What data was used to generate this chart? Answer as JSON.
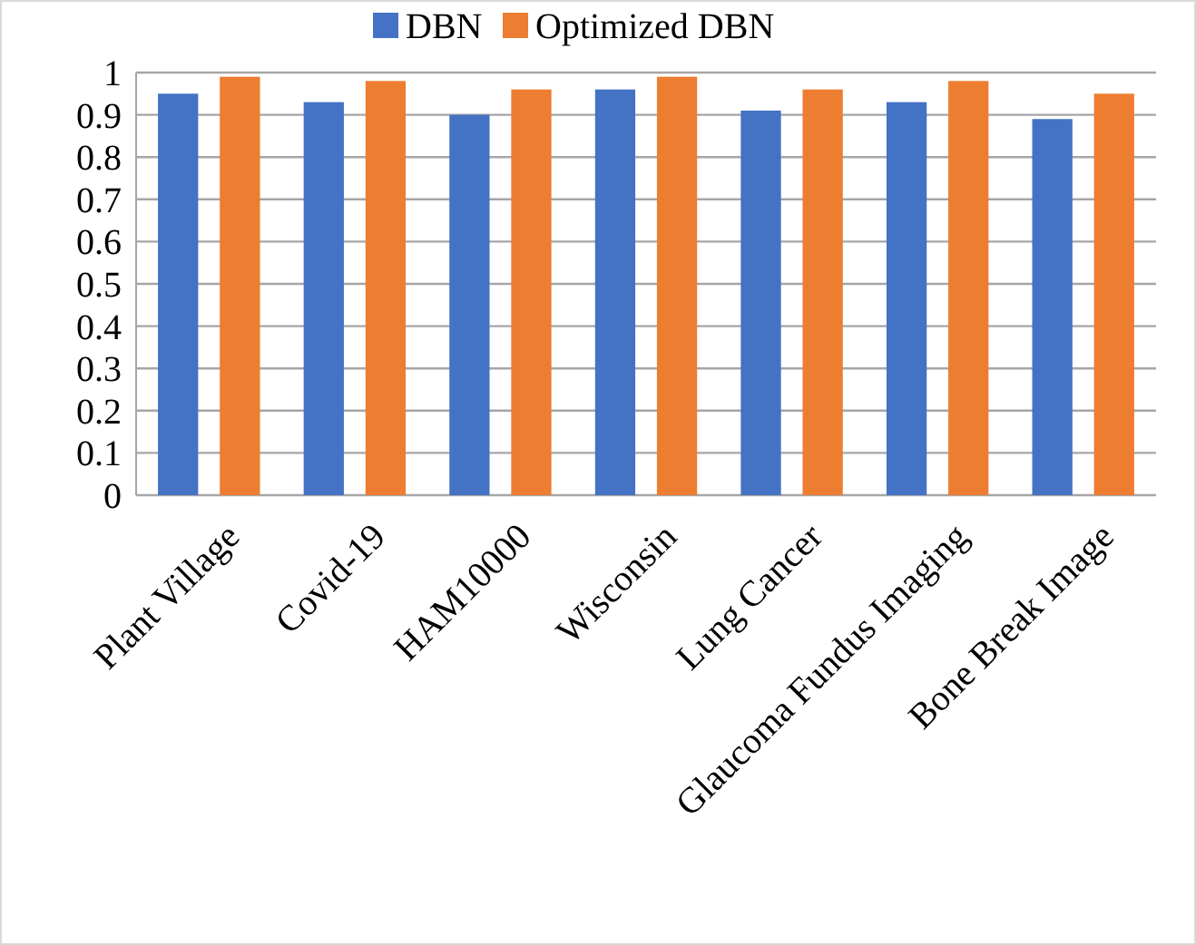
{
  "chart_data": {
    "type": "bar",
    "categories": [
      "Plant Village",
      "Covid-19",
      "HAM10000",
      "Wisconsin",
      "Lung Cancer",
      "Glaucoma Fundus Imaging",
      "Bone Break Image"
    ],
    "series": [
      {
        "name": "DBN",
        "color": "#4472c4",
        "values": [
          0.95,
          0.93,
          0.9,
          0.96,
          0.91,
          0.93,
          0.89
        ]
      },
      {
        "name": "Optimized DBN",
        "color": "#ed7d31",
        "values": [
          0.99,
          0.98,
          0.96,
          0.99,
          0.96,
          0.98,
          0.95
        ]
      }
    ],
    "ylim": [
      0,
      1
    ],
    "yticks": [
      0,
      0.1,
      0.2,
      0.3,
      0.4,
      0.5,
      0.6,
      0.7,
      0.8,
      0.9,
      1
    ],
    "grid": "y",
    "legend": "top"
  }
}
